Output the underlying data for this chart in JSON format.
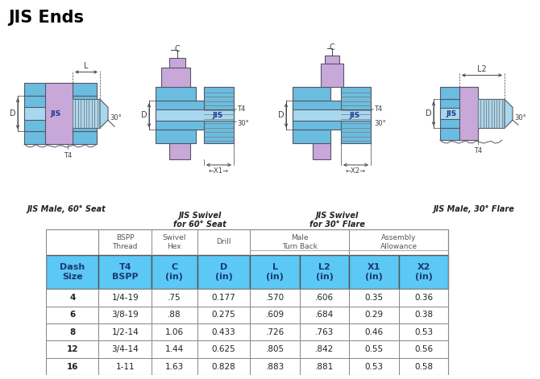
{
  "title": "JIS Ends",
  "table_header_main": [
    "Dash\nSize",
    "T4\nBSPP",
    "C\n(in)",
    "D\n(in)",
    "L\n(in)",
    "L2\n(in)",
    "X1\n(in)",
    "X2\n(in)"
  ],
  "table_data": [
    [
      "4",
      "1/4-19",
      ".75",
      "0.177",
      ".570",
      ".606",
      "0.35",
      "0.36"
    ],
    [
      "6",
      "3/8-19",
      ".88",
      "0.275",
      ".609",
      ".684",
      "0.29",
      "0.38"
    ],
    [
      "8",
      "1/2-14",
      "1.06",
      "0.433",
      ".726",
      ".763",
      "0.46",
      "0.53"
    ],
    [
      "12",
      "3/4-14",
      "1.44",
      "0.625",
      ".805",
      ".842",
      "0.55",
      "0.56"
    ],
    [
      "16",
      "1-11",
      "1.63",
      "0.828",
      ".883",
      ".881",
      "0.53",
      "0.58"
    ]
  ],
  "header_bg_color": "#5bc8f5",
  "header_text_color": "#1a3a6e",
  "border_color": "#888888",
  "title_color": "#000000",
  "diagram_labels": [
    "JIS Male, 60° Seat",
    "JIS Swivel\nfor 60° Seat",
    "JIS Swivel\nfor 30° Flare",
    "JIS Male, 30° Flare"
  ],
  "light_blue": "#6bbde0",
  "lighter_blue": "#a8d8f0",
  "purple_color": "#c8a8d8",
  "dark_blue": "#3a8fc8",
  "dim_line_color": "#444444",
  "part_edge_color": "#555566",
  "thread_color": "#888888",
  "label_color": "#333333",
  "jis_label_color": "#1a3a8e"
}
